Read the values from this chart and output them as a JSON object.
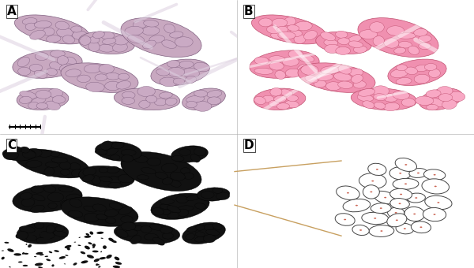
{
  "figure_width": 6.0,
  "figure_height": 3.4,
  "dpi": 100,
  "background_color": "#ffffff",
  "panel_labels": [
    "A",
    "B",
    "C",
    "D"
  ],
  "label_fontsize": 11,
  "label_fontweight": "bold",
  "connector_color": "#c8a060",
  "connector_linewidth": 1.0,
  "bundles_A": [
    [
      0.22,
      0.78,
      0.17,
      0.09,
      -25
    ],
    [
      0.45,
      0.68,
      0.12,
      0.08,
      -15
    ],
    [
      0.2,
      0.52,
      0.15,
      0.1,
      15
    ],
    [
      0.42,
      0.42,
      0.17,
      0.1,
      -20
    ],
    [
      0.68,
      0.72,
      0.19,
      0.12,
      -35
    ],
    [
      0.76,
      0.46,
      0.13,
      0.09,
      25
    ],
    [
      0.62,
      0.26,
      0.14,
      0.08,
      -8
    ],
    [
      0.86,
      0.26,
      0.1,
      0.07,
      35
    ],
    [
      0.18,
      0.26,
      0.11,
      0.08,
      8
    ]
  ],
  "panel_A_bg": "#d4c0cc",
  "panel_B_bg": "#f5d0de",
  "fiber_A_color": "#c8a8c0",
  "fiber_A_edge": "#806080",
  "fiber_B_color": "#f090b0",
  "fiber_B_edge": "#c05070",
  "fiber_C_face": "#111111",
  "fiber_D_edge": "#444444",
  "fiber_D_dot": "#cc6655"
}
